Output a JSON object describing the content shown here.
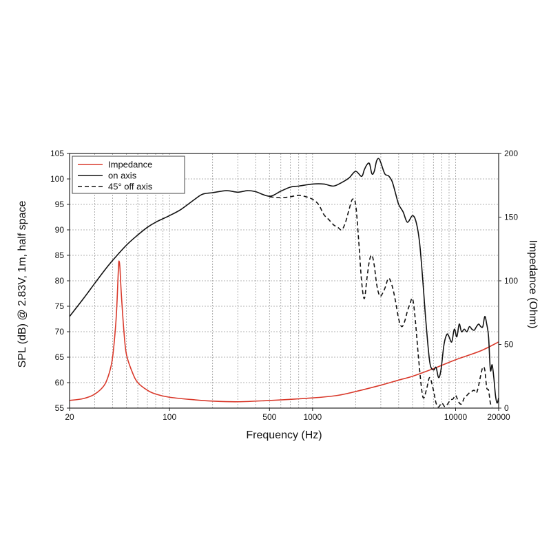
{
  "chart_data": {
    "type": "line",
    "title": "",
    "xlabel": "Frequency (Hz)",
    "ylabel": "SPL (dB) @ 2.83V, 1m, half space",
    "y2label": "Impedance (Ohm)",
    "xscale": "log",
    "xlim": [
      20,
      20000
    ],
    "ylim": [
      55,
      105
    ],
    "y2lim": [
      0,
      200
    ],
    "grid": true,
    "legend_position": "top-left",
    "x_ticks": [
      20,
      100,
      500,
      1000,
      10000,
      20000
    ],
    "x_tick_labels": [
      "20",
      "100",
      "500",
      "1000",
      "10000",
      "20000"
    ],
    "y_ticks": [
      55,
      60,
      65,
      70,
      75,
      80,
      85,
      90,
      95,
      100,
      105
    ],
    "y_tick_labels": [
      "55",
      "60",
      "65",
      "70",
      "75",
      "80",
      "85",
      "90",
      "95",
      "100",
      "105"
    ],
    "y2_ticks": [
      0,
      50,
      100,
      150,
      200
    ],
    "y2_tick_labels": [
      "0",
      "50",
      "100",
      "150",
      "200"
    ],
    "series": [
      {
        "name": "Impedance",
        "axis": "right",
        "color": "#d9392b",
        "style": "solid",
        "points": [
          [
            20,
            6
          ],
          [
            25,
            7.5
          ],
          [
            30,
            11
          ],
          [
            35,
            18
          ],
          [
            38,
            28
          ],
          [
            40,
            40
          ],
          [
            42,
            65
          ],
          [
            43,
            85
          ],
          [
            44,
            112
          ],
          [
            44.5,
            115
          ],
          [
            45,
            110
          ],
          [
            46,
            90
          ],
          [
            48,
            60
          ],
          [
            50,
            42
          ],
          [
            55,
            28
          ],
          [
            60,
            20
          ],
          [
            70,
            14
          ],
          [
            80,
            11
          ],
          [
            100,
            8.5
          ],
          [
            150,
            6.5
          ],
          [
            200,
            5.5
          ],
          [
            300,
            5
          ],
          [
            500,
            6
          ],
          [
            1000,
            8
          ],
          [
            1500,
            10
          ],
          [
            2000,
            13
          ],
          [
            3000,
            18
          ],
          [
            4000,
            22
          ],
          [
            5000,
            25
          ],
          [
            7000,
            31
          ],
          [
            10000,
            38
          ],
          [
            15000,
            45
          ],
          [
            20000,
            52
          ]
        ]
      },
      {
        "name": "on axis",
        "axis": "left",
        "color": "#111111",
        "style": "solid",
        "points": [
          [
            20,
            73
          ],
          [
            25,
            76.5
          ],
          [
            30,
            79.5
          ],
          [
            35,
            82
          ],
          [
            40,
            84
          ],
          [
            50,
            87
          ],
          [
            60,
            89
          ],
          [
            70,
            90.5
          ],
          [
            80,
            91.5
          ],
          [
            100,
            92.8
          ],
          [
            120,
            94
          ],
          [
            150,
            96
          ],
          [
            170,
            97
          ],
          [
            200,
            97.3
          ],
          [
            250,
            97.7
          ],
          [
            300,
            97.4
          ],
          [
            350,
            97.7
          ],
          [
            400,
            97.5
          ],
          [
            500,
            96.6
          ],
          [
            600,
            97.6
          ],
          [
            700,
            98.4
          ],
          [
            800,
            98.6
          ],
          [
            1000,
            99
          ],
          [
            1200,
            99
          ],
          [
            1400,
            98.6
          ],
          [
            1600,
            99.3
          ],
          [
            1800,
            100.2
          ],
          [
            2000,
            101.5
          ],
          [
            2200,
            100.5
          ],
          [
            2300,
            101.8
          ],
          [
            2400,
            102.8
          ],
          [
            2500,
            103
          ],
          [
            2600,
            101
          ],
          [
            2700,
            101.5
          ],
          [
            2800,
            103.5
          ],
          [
            2900,
            104
          ],
          [
            3000,
            103.2
          ],
          [
            3200,
            101
          ],
          [
            3400,
            100.6
          ],
          [
            3600,
            99.5
          ],
          [
            3800,
            97.2
          ],
          [
            4000,
            95
          ],
          [
            4300,
            93.5
          ],
          [
            4600,
            91.5
          ],
          [
            5000,
            92.8
          ],
          [
            5300,
            91.5
          ],
          [
            5600,
            87.5
          ],
          [
            5900,
            80
          ],
          [
            6200,
            72
          ],
          [
            6600,
            64
          ],
          [
            7000,
            62.5
          ],
          [
            7300,
            63
          ],
          [
            7600,
            61
          ],
          [
            7900,
            62.5
          ],
          [
            8300,
            67.5
          ],
          [
            8700,
            69.5
          ],
          [
            9000,
            69
          ],
          [
            9400,
            68
          ],
          [
            9800,
            70.5
          ],
          [
            10200,
            69
          ],
          [
            10600,
            71.5
          ],
          [
            11000,
            70
          ],
          [
            11500,
            70.5
          ],
          [
            12000,
            70
          ],
          [
            12500,
            71
          ],
          [
            13000,
            70.5
          ],
          [
            13500,
            70.3
          ],
          [
            14000,
            71
          ],
          [
            14500,
            71.5
          ],
          [
            15000,
            71
          ],
          [
            15500,
            71
          ],
          [
            16000,
            73
          ],
          [
            16500,
            71.5
          ],
          [
            17000,
            69
          ],
          [
            17500,
            62.5
          ],
          [
            18000,
            63.5
          ],
          [
            18500,
            61
          ],
          [
            19000,
            57.5
          ],
          [
            19500,
            56
          ],
          [
            20000,
            57
          ]
        ]
      },
      {
        "name": "45° off axis",
        "axis": "left",
        "color": "#111111",
        "style": "dashed",
        "points": [
          [
            500,
            96.5
          ],
          [
            600,
            96.3
          ],
          [
            700,
            96.5
          ],
          [
            800,
            96.8
          ],
          [
            900,
            96.5
          ],
          [
            1000,
            96
          ],
          [
            1100,
            95
          ],
          [
            1200,
            93
          ],
          [
            1300,
            92
          ],
          [
            1400,
            91
          ],
          [
            1500,
            90.5
          ],
          [
            1600,
            90
          ],
          [
            1700,
            91.5
          ],
          [
            1800,
            94
          ],
          [
            1900,
            96
          ],
          [
            2000,
            95
          ],
          [
            2100,
            88
          ],
          [
            2200,
            80
          ],
          [
            2300,
            76.5
          ],
          [
            2400,
            80.5
          ],
          [
            2500,
            84
          ],
          [
            2600,
            85
          ],
          [
            2700,
            83
          ],
          [
            2800,
            79.5
          ],
          [
            2900,
            77.5
          ],
          [
            3000,
            77
          ],
          [
            3200,
            78.5
          ],
          [
            3400,
            80.5
          ],
          [
            3600,
            79
          ],
          [
            3800,
            76
          ],
          [
            4000,
            72.5
          ],
          [
            4200,
            71
          ],
          [
            4400,
            72
          ],
          [
            4600,
            74
          ],
          [
            4800,
            75.5
          ],
          [
            5000,
            76.5
          ],
          [
            5200,
            73
          ],
          [
            5500,
            65
          ],
          [
            5800,
            58.5
          ],
          [
            6000,
            57
          ],
          [
            6300,
            59
          ],
          [
            6600,
            61
          ],
          [
            7000,
            58.5
          ],
          [
            7300,
            56
          ],
          [
            7600,
            55.2
          ],
          [
            8000,
            56
          ],
          [
            8400,
            55.3
          ],
          [
            8800,
            55.8
          ],
          [
            9200,
            56.6
          ],
          [
            9600,
            56.8
          ],
          [
            10000,
            57.5
          ],
          [
            10500,
            56.2
          ],
          [
            11000,
            55.8
          ],
          [
            11500,
            57
          ],
          [
            12000,
            57.5
          ],
          [
            12500,
            58
          ],
          [
            13000,
            58.3
          ],
          [
            13500,
            58.5
          ],
          [
            14000,
            58
          ],
          [
            14500,
            59.5
          ],
          [
            15000,
            61.5
          ],
          [
            15500,
            63
          ],
          [
            16000,
            62.5
          ],
          [
            16500,
            59
          ],
          [
            17000,
            58.5
          ],
          [
            17500,
            56
          ],
          [
            18000,
            55.2
          ]
        ]
      }
    ]
  }
}
